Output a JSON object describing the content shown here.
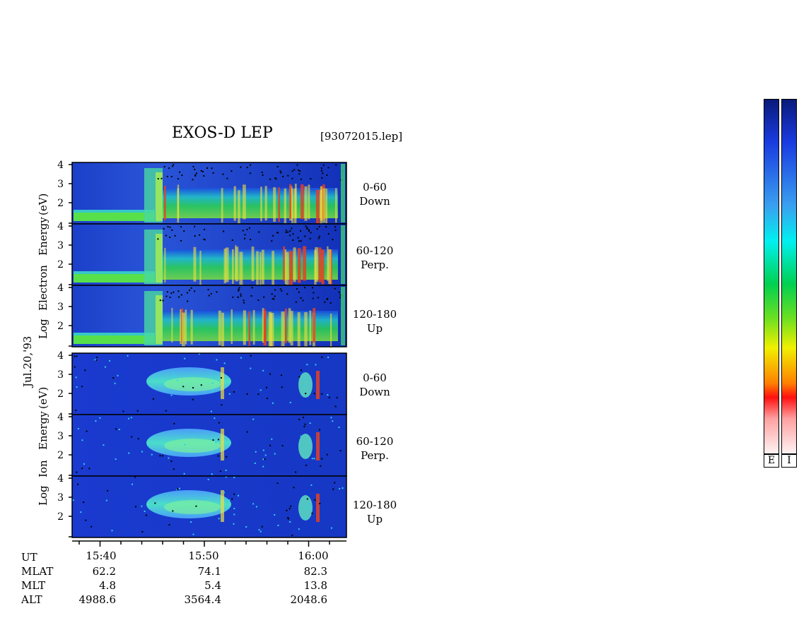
{
  "chart_data": {
    "type": "heatmap",
    "title": "EXOS-D LEP",
    "file": "[93072015.lep]",
    "date_label": "Jul.20,'93",
    "electron": {
      "ylabel": "Log  Electron  Energy (eV)",
      "ylabel_parts": [
        "Log",
        "Electron",
        "Energy",
        "(eV)"
      ],
      "panels": [
        {
          "angle": "0-60",
          "dir": "Down"
        },
        {
          "angle": "60-120",
          "dir": "Perp."
        },
        {
          "angle": "120-180",
          "dir": "Up"
        }
      ]
    },
    "ion": {
      "ylabel_parts": [
        "Log",
        "Ion",
        "Energy",
        "(eV)"
      ],
      "panels": [
        {
          "angle": "0-60",
          "dir": "Down"
        },
        {
          "angle": "60-120",
          "dir": "Perp."
        },
        {
          "angle": "120-180",
          "dir": "Up"
        }
      ]
    },
    "yticks": [
      "4",
      "3",
      "2"
    ],
    "ylim": [
      1,
      4
    ],
    "xticks": [
      "15:40",
      "15:50",
      "16:00"
    ],
    "rows": [
      {
        "label": "UT",
        "values": [
          "15:40",
          "15:50",
          "16:00"
        ]
      },
      {
        "label": "MLAT",
        "values": [
          "62.2",
          "74.1",
          "82.3"
        ]
      },
      {
        "label": "MLT",
        "values": [
          "4.8",
          "5.4",
          "13.8"
        ]
      },
      {
        "label": "ALT",
        "values": [
          "4988.6",
          "3564.4",
          "2048.6"
        ]
      }
    ],
    "colorbars": [
      {
        "label": "E"
      },
      {
        "label": "I"
      }
    ]
  }
}
